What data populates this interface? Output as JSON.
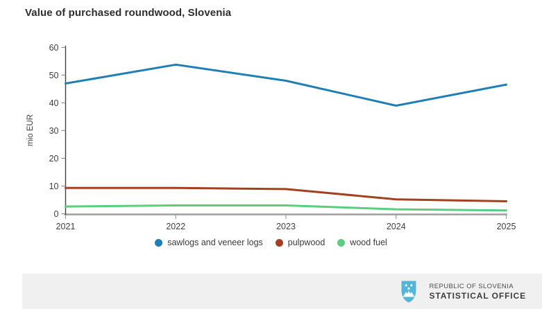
{
  "chart_data": {
    "type": "line",
    "title": "Value of purchased roundwood, Slovenia",
    "ylabel": "mio EUR",
    "xlabel": "",
    "x": [
      2021,
      2022,
      2023,
      2024,
      2025
    ],
    "series": [
      {
        "name": "sawlogs and veneer logs",
        "color": "#1f7fb4",
        "values": [
          47.0,
          53.8,
          48.0,
          39.0,
          46.6
        ]
      },
      {
        "name": "pulpwood",
        "color": "#a4401f",
        "values": [
          9.3,
          9.3,
          8.9,
          5.2,
          4.5
        ]
      },
      {
        "name": "wood fuel",
        "color": "#5bcd7f",
        "values": [
          2.6,
          3.0,
          3.0,
          1.6,
          1.2
        ]
      }
    ],
    "ylim": [
      0,
      60
    ],
    "yticks": [
      0,
      10,
      20,
      30,
      40,
      50,
      60
    ],
    "grid": false,
    "legend_position": "bottom",
    "axis_colors": {
      "y_axis": "#3f3f3f",
      "x_axis": "#9d9d9d",
      "tick_text": "#3f3f3f"
    }
  },
  "footer": {
    "line1": "REPUBLIC OF SLOVENIA",
    "line2": "STATISTICAL OFFICE",
    "logo_icon": "slovenia-coat-of-arms-icon",
    "logo_color": "#55b5d9",
    "bar_color": "#f0f0f1"
  }
}
